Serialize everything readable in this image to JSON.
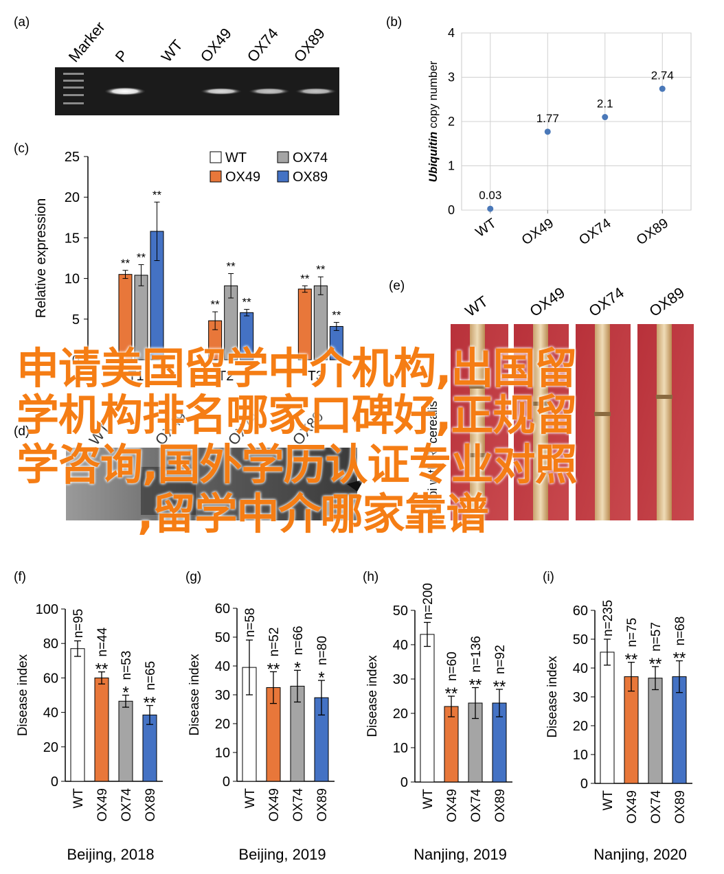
{
  "banner": {
    "line1": "申请美国留学中介机构,出国留",
    "line2": "学机构排名哪家口碑好,正规留",
    "line3": "学咨询,国外学历认证专业对照",
    "line4": ",留学中介哪家靠谱"
  },
  "panel_labels": {
    "a": "(a)",
    "b": "(b)",
    "c": "(c)",
    "d": "(d)",
    "e": "(e)",
    "f": "(f)",
    "g": "(g)",
    "h": "(h)",
    "i": "(i)"
  },
  "gel_a": {
    "lanes": [
      "Marker",
      "P",
      "WT",
      "OX49",
      "OX74",
      "OX89"
    ]
  },
  "gel_d": {
    "lanes": [
      "WT",
      "OX49",
      "OX74",
      "OX89"
    ]
  },
  "photo_e": {
    "labels": [
      "WT",
      "OX49",
      "OX74",
      "OX89"
    ],
    "side_text": "10 dpi with R. cerealis"
  },
  "colors": {
    "WT": "#ffffff",
    "OX49": "#e8773a",
    "OX74": "#a5a5a5",
    "OX89": "#4472c4",
    "orange_text": "#f57d14",
    "dot": "#4a78b8"
  },
  "chart_data": [
    {
      "id": "b",
      "type": "scatter",
      "categories": [
        "WT",
        "OX49",
        "OX74",
        "OX89"
      ],
      "values": [
        0.03,
        1.77,
        2.1,
        2.74
      ],
      "data_labels": [
        "0.03",
        "1.77",
        "2.1",
        "2.74"
      ],
      "ylabel_italic": "Ubiquitin",
      "ylabel_rest": " copy number",
      "ylim": [
        0,
        4
      ],
      "yticks": [
        0,
        1,
        2,
        3,
        4
      ],
      "grid": true
    },
    {
      "id": "c",
      "type": "bar",
      "categories": [
        "T1",
        "T2",
        "T3"
      ],
      "category_labels": [
        "T1",
        "T2",
        "T3"
      ],
      "ylabel": "Relative expression",
      "ylim": [
        0,
        25
      ],
      "yticks": [
        0,
        5,
        10,
        15,
        20,
        25
      ],
      "legend_position": "top-right",
      "series": [
        {
          "name": "WT",
          "values": [
            0,
            0,
            0
          ],
          "errors": [
            0,
            0,
            0
          ],
          "sig": [
            "",
            "",
            ""
          ]
        },
        {
          "name": "OX49",
          "values": [
            10.5,
            4.8,
            8.7
          ],
          "errors": [
            0.5,
            1.1,
            0.4
          ],
          "sig": [
            "**",
            "**",
            "**"
          ]
        },
        {
          "name": "OX74",
          "values": [
            10.4,
            9.1,
            9.1
          ],
          "errors": [
            1.3,
            1.5,
            1.1
          ],
          "sig": [
            "**",
            "**",
            "**"
          ]
        },
        {
          "name": "OX89",
          "values": [
            15.8,
            5.8,
            4.1
          ],
          "errors": [
            3.6,
            0.4,
            0.5
          ],
          "sig": [
            "**",
            "**",
            "**"
          ]
        }
      ]
    },
    {
      "id": "f",
      "type": "bar",
      "categories": [
        "WT",
        "OX49",
        "OX74",
        "OX89"
      ],
      "values": [
        77,
        60,
        46.5,
        38.5
      ],
      "errors": [
        4.5,
        3.5,
        3.5,
        5.5
      ],
      "n_labels": [
        "n=95",
        "n=44",
        "n=53",
        "n=65"
      ],
      "sig": [
        "",
        "**",
        "*",
        "**"
      ],
      "ylabel": "Disease index",
      "ylim": [
        0,
        100
      ],
      "yticks": [
        0,
        20,
        40,
        60,
        80,
        100
      ],
      "xlabel": "Beijing, 2018"
    },
    {
      "id": "g",
      "type": "bar",
      "categories": [
        "WT",
        "OX49",
        "OX74",
        "OX89"
      ],
      "values": [
        39.5,
        32.5,
        33,
        29
      ],
      "errors": [
        9.5,
        5.5,
        5.5,
        6
      ],
      "n_labels": [
        "n=58",
        "n=52",
        "n=66",
        "n=80"
      ],
      "sig": [
        "",
        "**",
        "*",
        "*"
      ],
      "ylabel": "Disease index",
      "ylim": [
        0,
        60
      ],
      "yticks": [
        0,
        10,
        20,
        30,
        40,
        50,
        60
      ],
      "xlabel": "Beijing, 2019"
    },
    {
      "id": "h",
      "type": "bar",
      "categories": [
        "WT",
        "OX49",
        "OX74",
        "OX89"
      ],
      "values": [
        43,
        22,
        23,
        23
      ],
      "errors": [
        3.5,
        3,
        4.5,
        4
      ],
      "n_labels": [
        "n=200",
        "n=60",
        "n=136",
        "n=92"
      ],
      "sig": [
        "",
        "**",
        "**",
        "**"
      ],
      "ylabel": "Disease index",
      "ylim": [
        0,
        50
      ],
      "yticks": [
        0,
        10,
        20,
        30,
        40,
        50
      ],
      "xlabel": "Nanjing, 2019"
    },
    {
      "id": "i",
      "type": "bar",
      "categories": [
        "WT",
        "OX49",
        "OX74",
        "OX89"
      ],
      "values": [
        45.5,
        37,
        36.5,
        37
      ],
      "errors": [
        4.5,
        5,
        4,
        5.5
      ],
      "n_labels": [
        "n=235",
        "n=75",
        "n=57",
        "n=68"
      ],
      "sig": [
        "",
        "**",
        "**",
        "**"
      ],
      "ylabel": "Disease index",
      "ylim": [
        0,
        60
      ],
      "yticks": [
        0,
        10,
        20,
        30,
        40,
        50,
        60
      ],
      "xlabel": "Nanjing, 2020"
    }
  ]
}
